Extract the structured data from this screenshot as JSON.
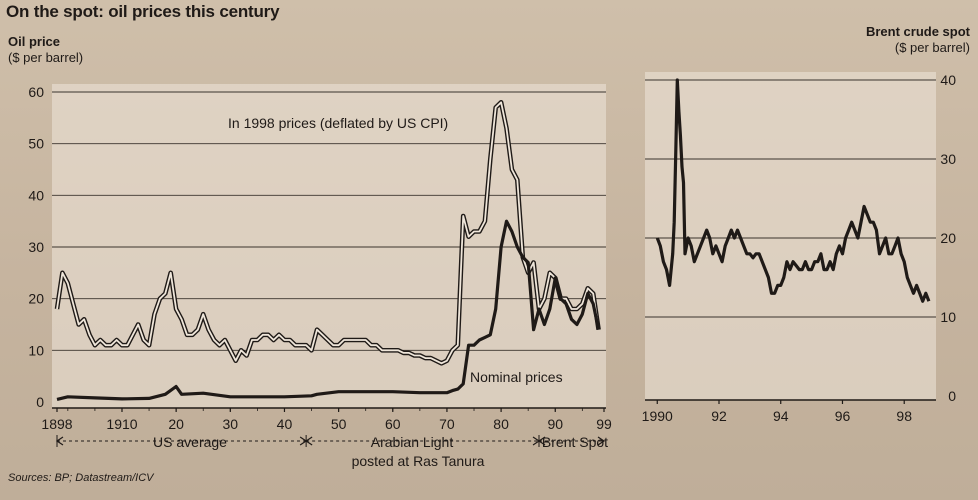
{
  "title": "On the spot: oil prices this century",
  "sources": "Sources: BP; Datastream/ICV",
  "colors": {
    "panel": "#efe6da",
    "line": "#1f1a17",
    "grid": "#3a332d"
  },
  "chart_data": [
    {
      "type": "line",
      "ylabel_line1": "Oil price",
      "ylabel_line2": "($ per barrel)",
      "ylim": [
        0,
        60
      ],
      "yticks": [
        "60",
        "50",
        "40",
        "30",
        "20",
        "10",
        "0"
      ],
      "ytick_values": [
        60,
        50,
        40,
        30,
        20,
        10,
        0
      ],
      "xlim": [
        1898,
        1999
      ],
      "xticks": [
        "1898",
        "1910",
        "20",
        "30",
        "40",
        "50",
        "60",
        "70",
        "80",
        "90",
        "99"
      ],
      "xtick_values": [
        1898,
        1910,
        1920,
        1930,
        1940,
        1950,
        1960,
        1970,
        1980,
        1990,
        1999
      ],
      "series": [
        {
          "name": "In 1998 prices (deflated by US CPI)",
          "style": "double",
          "x": [
            1898,
            1899,
            1900,
            1901,
            1902,
            1903,
            1904,
            1905,
            1906,
            1907,
            1908,
            1909,
            1910,
            1911,
            1912,
            1913,
            1914,
            1915,
            1916,
            1917,
            1918,
            1919,
            1920,
            1921,
            1922,
            1923,
            1924,
            1925,
            1926,
            1927,
            1928,
            1929,
            1930,
            1931,
            1932,
            1933,
            1934,
            1935,
            1936,
            1937,
            1938,
            1939,
            1940,
            1941,
            1942,
            1943,
            1944,
            1945,
            1946,
            1947,
            1948,
            1949,
            1950,
            1951,
            1952,
            1953,
            1954,
            1955,
            1956,
            1957,
            1958,
            1959,
            1960,
            1961,
            1962,
            1963,
            1964,
            1965,
            1966,
            1967,
            1968,
            1969,
            1970,
            1971,
            1972,
            1973,
            1974,
            1975,
            1976,
            1977,
            1978,
            1979,
            1980,
            1981,
            1982,
            1983,
            1984,
            1985,
            1986,
            1987,
            1988,
            1989,
            1990,
            1991,
            1992,
            1993,
            1994,
            1995,
            1996,
            1997,
            1998
          ],
          "values": [
            18,
            25,
            23,
            19,
            15,
            16,
            13,
            11,
            12,
            11,
            11,
            12,
            11,
            11,
            13,
            15,
            12,
            11,
            17,
            20,
            21,
            25,
            18,
            16,
            13,
            13,
            14,
            17,
            14,
            12,
            11,
            12,
            10,
            8,
            10,
            9,
            12,
            12,
            13,
            13,
            12,
            13,
            12,
            12,
            11,
            11,
            11,
            10,
            14,
            13,
            12,
            11,
            11,
            12,
            12,
            12,
            12,
            12,
            11,
            11,
            10,
            10,
            10,
            10,
            9.5,
            9.5,
            9,
            9,
            8.5,
            8.5,
            8,
            7.5,
            8,
            10,
            11,
            36,
            32,
            33,
            33,
            35,
            47,
            57,
            58,
            53,
            45,
            43,
            28,
            25,
            27,
            18,
            20,
            25,
            24,
            20,
            20,
            18,
            18,
            19,
            22,
            21,
            14
          ]
        },
        {
          "name": "Nominal prices",
          "style": "thick",
          "x": [
            1898,
            1900,
            1905,
            1910,
            1915,
            1918,
            1920,
            1921,
            1925,
            1930,
            1935,
            1940,
            1945,
            1946,
            1950,
            1955,
            1960,
            1965,
            1970,
            1971,
            1972,
            1973,
            1974,
            1975,
            1976,
            1977,
            1978,
            1979,
            1980,
            1981,
            1982,
            1983,
            1984,
            1985,
            1986,
            1987,
            1988,
            1989,
            1990,
            1991,
            1992,
            1993,
            1994,
            1995,
            1996,
            1997,
            1998
          ],
          "values": [
            0.5,
            1,
            0.8,
            0.6,
            0.7,
            1.5,
            3,
            1.5,
            1.7,
            1,
            1,
            1,
            1.2,
            1.5,
            2,
            2,
            2,
            1.8,
            1.8,
            2.2,
            2.5,
            3.5,
            11,
            11,
            12,
            12.5,
            13,
            18,
            30,
            35,
            33,
            30,
            28,
            27,
            14,
            18,
            15,
            18,
            24,
            20,
            19,
            16,
            15,
            17,
            21,
            19,
            14
          ]
        }
      ],
      "annotations": [
        {
          "text": "In 1998 prices (deflated by US CPI)"
        },
        {
          "text": "Nominal prices"
        }
      ],
      "eras": [
        {
          "label": "US average",
          "start": 1898,
          "end": 1944
        },
        {
          "label_line1": "Arabian Light",
          "label_line2": "posted at Ras Tanura",
          "start": 1944,
          "end": 1987
        },
        {
          "label": "Brent Spot",
          "start": 1987,
          "end": 1999
        }
      ]
    },
    {
      "type": "line",
      "ylabel_line1": "Brent crude spot",
      "ylabel_line2": "($ per barrel)",
      "ylim": [
        0,
        40
      ],
      "yticks": [
        "40",
        "30",
        "20",
        "10",
        "0"
      ],
      "ytick_values": [
        40,
        30,
        20,
        10,
        0
      ],
      "xlim": [
        1989.7,
        1998.9
      ],
      "xticks": [
        "1990",
        "92",
        "94",
        "96",
        "98"
      ],
      "xtick_values": [
        1990,
        1992,
        1994,
        1996,
        1998
      ],
      "series": [
        {
          "name": "Brent crude spot",
          "style": "thick",
          "x": [
            1990.0,
            1990.1,
            1990.2,
            1990.3,
            1990.4,
            1990.5,
            1990.55,
            1990.6,
            1990.65,
            1990.7,
            1990.75,
            1990.8,
            1990.85,
            1990.9,
            1991.0,
            1991.1,
            1991.2,
            1991.3,
            1991.4,
            1991.5,
            1991.6,
            1991.7,
            1991.8,
            1991.9,
            1992.0,
            1992.1,
            1992.2,
            1992.3,
            1992.4,
            1992.5,
            1992.6,
            1992.7,
            1992.8,
            1992.9,
            1993.0,
            1993.1,
            1993.2,
            1993.3,
            1993.4,
            1993.5,
            1993.6,
            1993.7,
            1993.8,
            1993.9,
            1994.0,
            1994.1,
            1994.2,
            1994.3,
            1994.4,
            1994.5,
            1994.6,
            1994.7,
            1994.8,
            1994.9,
            1995.0,
            1995.1,
            1995.2,
            1995.3,
            1995.4,
            1995.5,
            1995.6,
            1995.7,
            1995.8,
            1995.9,
            1996.0,
            1996.1,
            1996.2,
            1996.3,
            1996.4,
            1996.5,
            1996.6,
            1996.7,
            1996.8,
            1996.9,
            1997.0,
            1997.1,
            1997.2,
            1997.3,
            1997.4,
            1997.5,
            1997.6,
            1997.7,
            1997.8,
            1997.9,
            1998.0,
            1998.1,
            1998.2,
            1998.3,
            1998.4,
            1998.5,
            1998.6,
            1998.7,
            1998.8
          ],
          "values": [
            20,
            19,
            17,
            16,
            14,
            18,
            22,
            31,
            40,
            36,
            33,
            29,
            27,
            18,
            20,
            19,
            17,
            18,
            19,
            20,
            21,
            20,
            18,
            19,
            18,
            17,
            19,
            20,
            21,
            20,
            21,
            20,
            19,
            18,
            18,
            17.5,
            18,
            18,
            17,
            16,
            15,
            13,
            13,
            14,
            14,
            15,
            17,
            16,
            17,
            16.5,
            16,
            16,
            17,
            16,
            16,
            17,
            17,
            18,
            16,
            16,
            17,
            16,
            18,
            19,
            18,
            20,
            21,
            22,
            21,
            20,
            22,
            24,
            23,
            22,
            22,
            21,
            18,
            19,
            20,
            18,
            18,
            19,
            20,
            18,
            17,
            15,
            14,
            13,
            14,
            13,
            12,
            13,
            12
          ]
        }
      ]
    }
  ]
}
